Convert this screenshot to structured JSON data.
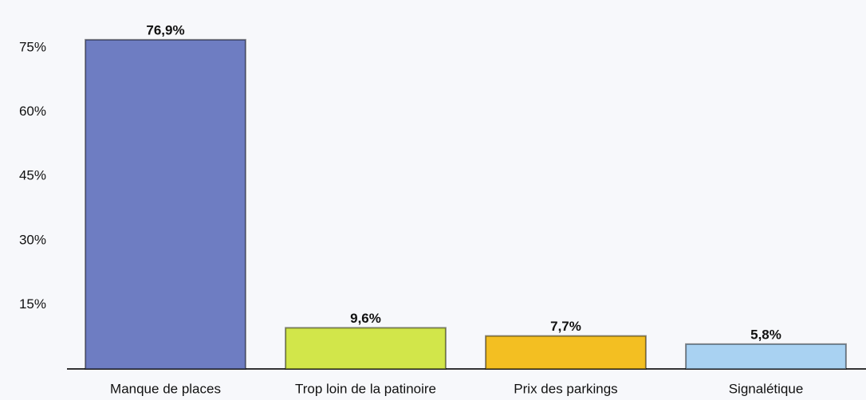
{
  "chart_data": {
    "type": "bar",
    "categories": [
      "Manque de places",
      "Trop loin de la patinoire",
      "Prix des parkings",
      "Signalétique"
    ],
    "values": [
      76.9,
      9.6,
      7.7,
      5.8
    ],
    "value_labels": [
      "76,9%",
      "9,6%",
      "7,7%",
      "5,8%"
    ],
    "colors": [
      "#6e7dc2",
      "#d2e64a",
      "#f3bf22",
      "#a9d2f2"
    ],
    "ylim": [
      0,
      86
    ],
    "yticks": [
      {
        "value": 15,
        "label": "15%"
      },
      {
        "value": 30,
        "label": "30%"
      },
      {
        "value": 45,
        "label": "45%"
      },
      {
        "value": 60,
        "label": "60%"
      },
      {
        "value": 75,
        "label": "75%"
      }
    ],
    "grid": false
  }
}
